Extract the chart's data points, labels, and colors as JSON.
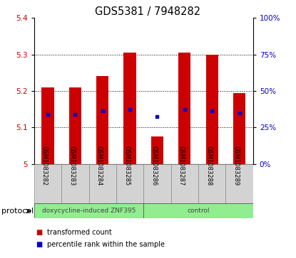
{
  "title": "GDS5381 / 7948282",
  "samples": [
    "GSM1083282",
    "GSM1083283",
    "GSM1083284",
    "GSM1083285",
    "GSM1083286",
    "GSM1083287",
    "GSM1083288",
    "GSM1083289"
  ],
  "bar_tops": [
    5.21,
    5.21,
    5.24,
    5.305,
    5.075,
    5.305,
    5.3,
    5.195
  ],
  "bar_bottoms": [
    5.0,
    5.0,
    5.0,
    5.0,
    5.0,
    5.0,
    5.0,
    5.0
  ],
  "percentile_values": [
    5.135,
    5.135,
    5.145,
    5.15,
    5.13,
    5.15,
    5.145,
    5.14
  ],
  "ylim": [
    5.0,
    5.4
  ],
  "yticks_left": [
    5.0,
    5.1,
    5.2,
    5.3,
    5.4
  ],
  "yticks_right": [
    0,
    25,
    50,
    75,
    100
  ],
  "bar_color": "#CC0000",
  "dot_color": "#0000CC",
  "group_labels": [
    "doxycycline-induced ZNF395",
    "control"
  ],
  "group_starts": [
    0,
    4
  ],
  "group_ends": [
    4,
    8
  ],
  "group_color": "#90EE90",
  "protocol_label": "protocol",
  "legend_items": [
    {
      "color": "#CC0000",
      "label": "transformed count"
    },
    {
      "color": "#0000CC",
      "label": "percentile rank within the sample"
    }
  ],
  "bar_width": 0.45,
  "gridline_yticks": [
    5.1,
    5.2,
    5.3
  ]
}
